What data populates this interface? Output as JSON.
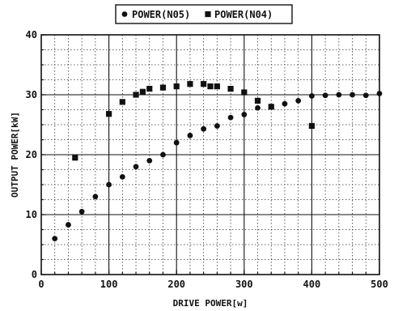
{
  "chart_data": {
    "type": "scatter",
    "title": "",
    "xlabel": "DRIVE POWER[w]",
    "ylabel": "OUTPUT POWER[kW]",
    "xlim": [
      0,
      500
    ],
    "ylim": [
      0,
      40
    ],
    "x_major_ticks": [
      0,
      100,
      200,
      300,
      400,
      500
    ],
    "y_major_ticks": [
      0,
      10,
      20,
      30,
      40
    ],
    "x_tick_labels": [
      "0",
      "100",
      "200",
      "300",
      "400",
      "500"
    ],
    "y_tick_labels": [
      "0",
      "10",
      "20",
      "30",
      "40"
    ],
    "grid": true,
    "legend_position": "top-center",
    "series": [
      {
        "name": "POWER(N05)",
        "marker": "circle",
        "color": "#111111",
        "points": [
          {
            "x": 20,
            "y": 6.0
          },
          {
            "x": 40,
            "y": 8.3
          },
          {
            "x": 60,
            "y": 10.5
          },
          {
            "x": 80,
            "y": 13.0
          },
          {
            "x": 100,
            "y": 15.0
          },
          {
            "x": 120,
            "y": 16.3
          },
          {
            "x": 140,
            "y": 18.0
          },
          {
            "x": 160,
            "y": 19.0
          },
          {
            "x": 180,
            "y": 20.0
          },
          {
            "x": 200,
            "y": 22.0
          },
          {
            "x": 220,
            "y": 23.2
          },
          {
            "x": 240,
            "y": 24.3
          },
          {
            "x": 260,
            "y": 24.8
          },
          {
            "x": 280,
            "y": 26.2
          },
          {
            "x": 300,
            "y": 26.7
          },
          {
            "x": 320,
            "y": 27.8
          },
          {
            "x": 340,
            "y": 28.0
          },
          {
            "x": 360,
            "y": 28.5
          },
          {
            "x": 380,
            "y": 29.0
          },
          {
            "x": 400,
            "y": 29.8
          },
          {
            "x": 420,
            "y": 29.9
          },
          {
            "x": 440,
            "y": 30.0
          },
          {
            "x": 460,
            "y": 30.0
          },
          {
            "x": 480,
            "y": 29.9
          },
          {
            "x": 500,
            "y": 30.2
          }
        ]
      },
      {
        "name": "POWER(N04)",
        "marker": "square",
        "color": "#111111",
        "points": [
          {
            "x": 50,
            "y": 19.5
          },
          {
            "x": 100,
            "y": 26.8
          },
          {
            "x": 120,
            "y": 28.8
          },
          {
            "x": 140,
            "y": 30.0
          },
          {
            "x": 150,
            "y": 30.5
          },
          {
            "x": 160,
            "y": 31.0
          },
          {
            "x": 180,
            "y": 31.2
          },
          {
            "x": 200,
            "y": 31.4
          },
          {
            "x": 220,
            "y": 31.8
          },
          {
            "x": 240,
            "y": 31.8
          },
          {
            "x": 250,
            "y": 31.4
          },
          {
            "x": 260,
            "y": 31.4
          },
          {
            "x": 280,
            "y": 31.0
          },
          {
            "x": 300,
            "y": 30.4
          },
          {
            "x": 320,
            "y": 29.0
          },
          {
            "x": 340,
            "y": 28.0
          },
          {
            "x": 400,
            "y": 24.8
          }
        ]
      }
    ]
  }
}
